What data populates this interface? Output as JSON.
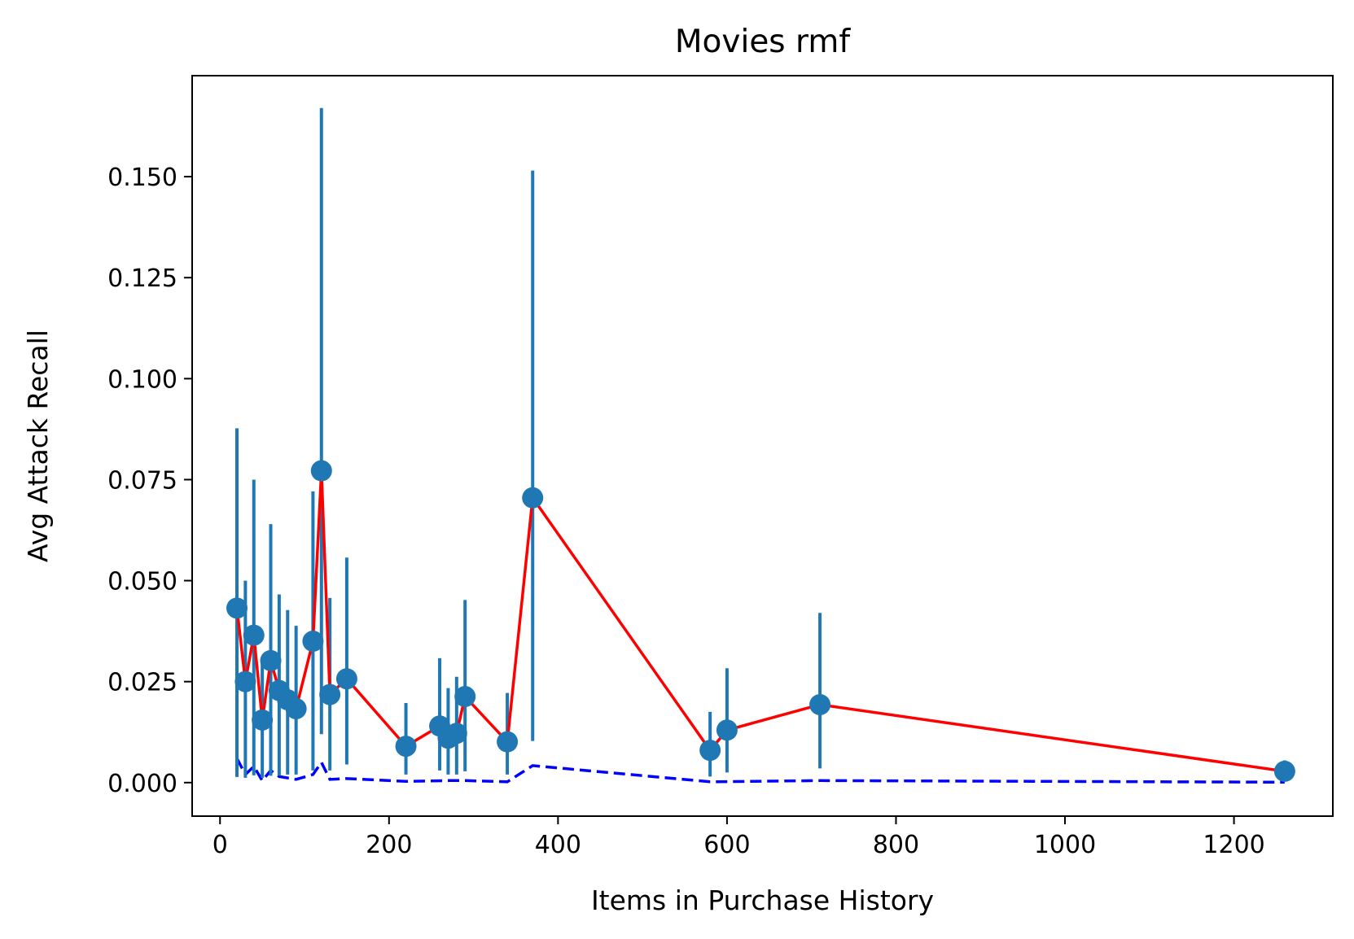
{
  "chart_data": {
    "type": "line",
    "title": "Movies rmf",
    "xlabel": "Items in Purchase History",
    "ylabel": "Avg Attack Recall",
    "xlim": [
      -33,
      1317
    ],
    "ylim": [
      -0.0083,
      0.175
    ],
    "xticks": [
      0,
      200,
      400,
      600,
      800,
      1000,
      1200
    ],
    "xtick_labels": [
      "0",
      "200",
      "400",
      "600",
      "800",
      "1000",
      "1200"
    ],
    "yticks": [
      0.0,
      0.025,
      0.05,
      0.075,
      0.1,
      0.125,
      0.15
    ],
    "ytick_labels": [
      "0.000",
      "0.025",
      "0.050",
      "0.075",
      "0.100",
      "0.125",
      "0.150"
    ],
    "grid": false,
    "legend": "none",
    "colors": {
      "mean_line": "#ff0000",
      "baseline": "#0000ff",
      "errorbar": "#1f77b4",
      "marker": "#1f77b4"
    },
    "series": [
      {
        "style": "solid red line with round markers and vertical error bars",
        "x": [
          20,
          30,
          40,
          50,
          60,
          70,
          80,
          90,
          110,
          120,
          130,
          150,
          220,
          260,
          270,
          280,
          290,
          340,
          370,
          580,
          600,
          710,
          1260
        ],
        "values": [
          0.0432,
          0.025,
          0.0365,
          0.0155,
          0.0302,
          0.0228,
          0.0205,
          0.0183,
          0.035,
          0.0772,
          0.0218,
          0.0257,
          0.009,
          0.014,
          0.011,
          0.0122,
          0.0213,
          0.0101,
          0.0705,
          0.008,
          0.013,
          0.0193,
          0.0028
        ],
        "error_low": [
          0.0014,
          0.0012,
          0.0018,
          0.0012,
          0.0017,
          0.0017,
          0.002,
          0.002,
          0.003,
          0.012,
          0.003,
          0.0045,
          0.002,
          0.003,
          0.002,
          0.002,
          0.0028,
          0.002,
          0.0103,
          0.0015,
          0.0025,
          0.0035,
          0.0005
        ],
        "error_high": [
          0.0877,
          0.05,
          0.075,
          0.03,
          0.064,
          0.0466,
          0.0427,
          0.0388,
          0.0721,
          0.167,
          0.0457,
          0.0557,
          0.0197,
          0.0308,
          0.0234,
          0.0262,
          0.0452,
          0.0222,
          0.1515,
          0.0175,
          0.0283,
          0.042,
          0.0055
        ]
      },
      {
        "style": "dashed blue line",
        "x": [
          20,
          30,
          40,
          50,
          60,
          70,
          90,
          110,
          120,
          130,
          150,
          220,
          270,
          290,
          340,
          370,
          580,
          710,
          1260
        ],
        "values": [
          0.006,
          0.002,
          0.004,
          0.0005,
          0.003,
          0.0015,
          0.0008,
          0.002,
          0.005,
          0.0008,
          0.001,
          0.0003,
          0.0005,
          0.0005,
          0.0002,
          0.0042,
          0.0002,
          0.0005,
          0.0001
        ]
      }
    ]
  }
}
